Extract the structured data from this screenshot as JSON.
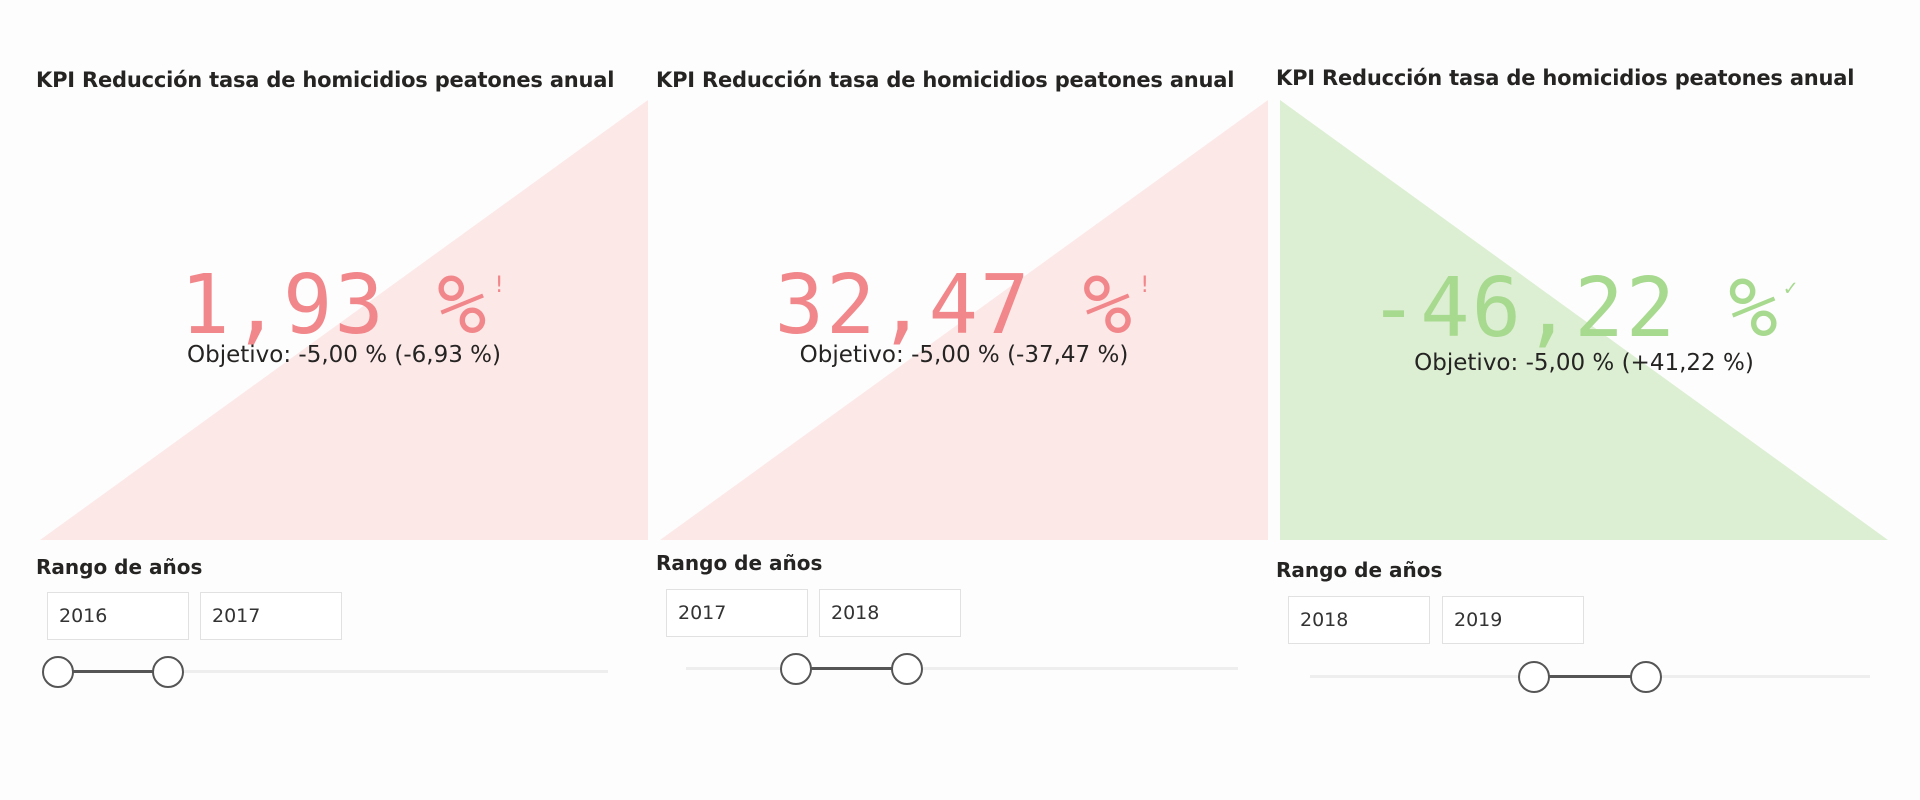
{
  "colors": {
    "bad_fill": "#fde8e8",
    "bad_text": "#f1878a",
    "good_fill": "#dcefd3",
    "good_text": "#a7d98f",
    "slider_line": "#555555",
    "track": "#eeeeee"
  },
  "panels": [
    {
      "kpi": {
        "title": "KPI Reducción tasa de homicidios peatones anual",
        "value": "1,93 %",
        "status": "bad",
        "status_icon": "!",
        "status_icon_name": "exclamation-icon",
        "goal_label": "Objetivo:",
        "goal_value": "-5,00 %",
        "goal_distance": "(-6,93 %)",
        "trend_direction": "up"
      },
      "slicer": {
        "title": "Rango de años",
        "start": "2016",
        "end": "2017",
        "range_fraction": [
          0.0,
          0.2
        ]
      }
    },
    {
      "kpi": {
        "title": "KPI Reducción tasa de homicidios peatones anual",
        "value": "32,47 %",
        "status": "bad",
        "status_icon": "!",
        "status_icon_name": "exclamation-icon",
        "goal_label": "Objetivo:",
        "goal_value": "-5,00 %",
        "goal_distance": "(-37,47 %)",
        "trend_direction": "up"
      },
      "slicer": {
        "title": "Rango de años",
        "start": "2017",
        "end": "2018",
        "range_fraction": [
          0.2,
          0.4
        ]
      }
    },
    {
      "kpi": {
        "title": "KPI Reducción tasa de homicidios peatones anual",
        "value": "-46,22 %",
        "status": "good",
        "status_icon": "✓",
        "status_icon_name": "checkmark-icon",
        "goal_label": "Objetivo:",
        "goal_value": "-5,00 %",
        "goal_distance": "(+41,22 %)",
        "trend_direction": "down"
      },
      "slicer": {
        "title": "Rango de años",
        "start": "2018",
        "end": "2019",
        "range_fraction": [
          0.4,
          0.6
        ]
      }
    }
  ]
}
